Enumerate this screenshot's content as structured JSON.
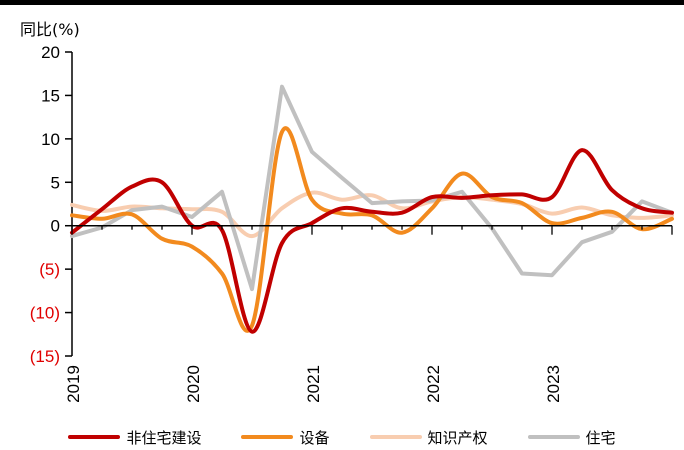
{
  "chart_data": {
    "type": "line",
    "unit_label": "同比(%)",
    "ylim": [
      -15,
      20
    ],
    "yticks": [
      20,
      15,
      10,
      5,
      0,
      -5,
      -10,
      -15
    ],
    "ytick_labels": [
      "20",
      "15",
      "10",
      "5",
      "0",
      "(5)",
      "(10)",
      "(15)"
    ],
    "xlim": [
      2019.0,
      2024.0
    ],
    "xticks": [
      2019,
      2020,
      2021,
      2022,
      2023
    ],
    "xtick_labels": [
      "2019",
      "2020",
      "2021",
      "2022",
      "2023"
    ],
    "colors": {
      "negative_tick": "#e00000",
      "axis": "#000000"
    },
    "series": [
      {
        "name": "非住宅建设",
        "color": "#c00000",
        "x": [
          2019.0,
          2019.25,
          2019.5,
          2019.75,
          2020.0,
          2020.25,
          2020.5,
          2020.75,
          2021.0,
          2021.25,
          2021.5,
          2021.75,
          2022.0,
          2022.25,
          2022.5,
          2022.75,
          2023.0,
          2023.25,
          2023.5,
          2023.75,
          2024.0
        ],
        "values": [
          -0.8,
          1.9,
          4.5,
          5.0,
          0.0,
          -0.5,
          -12.2,
          -2.0,
          0.3,
          2.0,
          1.6,
          1.5,
          3.3,
          3.2,
          3.5,
          3.6,
          3.3,
          8.7,
          4.1,
          2.0,
          1.5
        ]
      },
      {
        "name": "设备",
        "color": "#f28a1e",
        "x": [
          2019.0,
          2019.25,
          2019.5,
          2019.75,
          2020.0,
          2020.25,
          2020.5,
          2020.75,
          2021.0,
          2021.25,
          2021.5,
          2021.75,
          2022.0,
          2022.25,
          2022.5,
          2022.75,
          2023.0,
          2023.25,
          2023.5,
          2023.75,
          2024.0
        ],
        "values": [
          1.2,
          0.8,
          1.3,
          -1.5,
          -2.4,
          -5.5,
          -11.5,
          10.8,
          3.0,
          1.4,
          1.2,
          -0.8,
          2.0,
          6.0,
          3.3,
          2.6,
          0.3,
          0.9,
          1.6,
          -0.4,
          0.8
        ]
      },
      {
        "name": "知识产权",
        "color": "#f8cdb0",
        "x": [
          2019.0,
          2019.25,
          2019.5,
          2019.75,
          2020.0,
          2020.25,
          2020.5,
          2020.75,
          2021.0,
          2021.25,
          2021.5,
          2021.75,
          2022.0,
          2022.25,
          2022.5,
          2022.75,
          2023.0,
          2023.25,
          2023.5,
          2023.75,
          2024.0
        ],
        "values": [
          2.4,
          1.7,
          2.2,
          2.0,
          1.9,
          1.6,
          -1.2,
          2.0,
          3.8,
          3.0,
          3.5,
          2.0,
          2.8,
          3.3,
          3.0,
          2.5,
          1.4,
          2.1,
          1.2,
          0.9,
          1.2
        ]
      },
      {
        "name": "住宅",
        "color": "#c0c0c0",
        "x": [
          2019.0,
          2019.25,
          2019.5,
          2019.75,
          2020.0,
          2020.25,
          2020.5,
          2020.75,
          2021.0,
          2021.25,
          2021.5,
          2021.75,
          2022.0,
          2022.25,
          2022.5,
          2022.75,
          2023.0,
          2023.25,
          2023.5,
          2023.75,
          2024.0
        ],
        "values": [
          -1.2,
          -0.2,
          1.8,
          2.2,
          1.0,
          3.9,
          -7.3,
          16.0,
          8.5,
          5.5,
          2.6,
          2.8,
          2.9,
          3.9,
          -0.3,
          -5.5,
          -5.7,
          -1.9,
          -0.7,
          2.8,
          1.5
        ]
      }
    ]
  }
}
